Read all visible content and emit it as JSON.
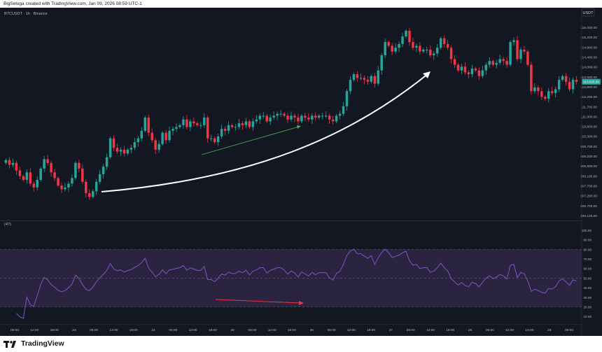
{
  "header": {
    "attribution": "BigSeluga created with TradingView.com, Jan 09, 2026 08:59 UTC-1"
  },
  "footer": {
    "brand": "TradingView",
    "logo_icon": "tradingview-logo-icon"
  },
  "colors": {
    "background": "#131722",
    "bullish": "#26a69a",
    "bearish": "#f23645",
    "rsi_line": "#7e57c2",
    "rsi_band": "#2a2440",
    "overlay_arrow": "#ffffff",
    "price_trendline": "#4caf50",
    "rsi_trendline": "#f23645",
    "text": "#b2b5be"
  },
  "chart_data": [
    {
      "type": "candlestick",
      "title": "BTCUSDT · 1h · Binance",
      "currency_badge": "USDT",
      "current_price_label": "113,020.00",
      "time_ticks": [
        "06:00",
        "12:00",
        "18:00",
        "23",
        "06:00",
        "12:00",
        "18:00",
        "24",
        "06:00",
        "12:00",
        "18:00",
        "25",
        "06:00",
        "12:00",
        "18:00",
        "26",
        "06:00",
        "12:00",
        "18:00",
        "27",
        "06:00",
        "12:00",
        "18:00",
        "28",
        "06:00",
        "12:00",
        "18:00",
        "29",
        "06:00"
      ],
      "price_ticks": [
        "116,000.00",
        "115,200.00",
        "114,800.00",
        "114,400.00",
        "114,000.00",
        "113,600.00",
        "112,800.00",
        "112,200.00",
        "111,700.00",
        "111,300.00",
        "110,800.00",
        "110,300.00",
        "109,700.00",
        "109,200.00",
        "108,600.00",
        "108,100.00",
        "107,700.00",
        "107,200.00",
        "106,700.00",
        "106,125.00"
      ],
      "close": [
        108950,
        108700,
        108800,
        108400,
        108100,
        107900,
        108300,
        107700,
        107500,
        107900,
        108500,
        109000,
        108800,
        108300,
        108000,
        107600,
        107400,
        107500,
        107700,
        108000,
        108800,
        108500,
        107800,
        107200,
        107000,
        107300,
        107800,
        108200,
        108600,
        109100,
        110100,
        109600,
        109400,
        109500,
        109300,
        109500,
        109600,
        109900,
        110100,
        110500,
        111200,
        110400,
        110000,
        109500,
        109800,
        110400,
        110000,
        110500,
        110600,
        110700,
        110800,
        111100,
        110700,
        111000,
        110900,
        110800,
        110800,
        111200,
        110100,
        110100,
        109900,
        110200,
        110600,
        110500,
        110800,
        110700,
        110700,
        110900,
        110800,
        111000,
        110700,
        111000,
        111100,
        111300,
        111300,
        111000,
        111200,
        111300,
        111400,
        111400,
        111300,
        111100,
        111300,
        111200,
        111000,
        111300,
        111200,
        111100,
        111300,
        111200,
        111300,
        111300,
        111300,
        111100,
        111000,
        111300,
        111400,
        111800,
        112600,
        113200,
        113500,
        113300,
        113300,
        113200,
        113100,
        113400,
        113000,
        113700,
        114500,
        115200,
        115000,
        114700,
        114900,
        115100,
        115500,
        115800,
        115200,
        114900,
        115000,
        114700,
        114800,
        114800,
        114500,
        114600,
        114900,
        115400,
        115100,
        114900,
        114300,
        114000,
        113700,
        113900,
        113600,
        113500,
        113800,
        113700,
        113400,
        113700,
        114000,
        114200,
        114000,
        114100,
        114300,
        114200,
        114000,
        115200,
        115300,
        114300,
        114800,
        114700,
        114000,
        112600,
        112800,
        112600,
        112300,
        112200,
        112600,
        112500,
        112700,
        113200,
        113400,
        113100,
        112700,
        113200,
        113100
      ],
      "rsi_ticks": [
        "100.00",
        "90.00",
        "80.00",
        "70.00",
        "60.00",
        "50.00",
        "40.00",
        "30.00",
        "20.00",
        "10.00"
      ],
      "rsi_label": "(47)",
      "rsi_bands": [
        80,
        50,
        20
      ],
      "rsi_ylim": [
        5,
        105
      ],
      "ylim": [
        105900,
        116800
      ]
    }
  ]
}
